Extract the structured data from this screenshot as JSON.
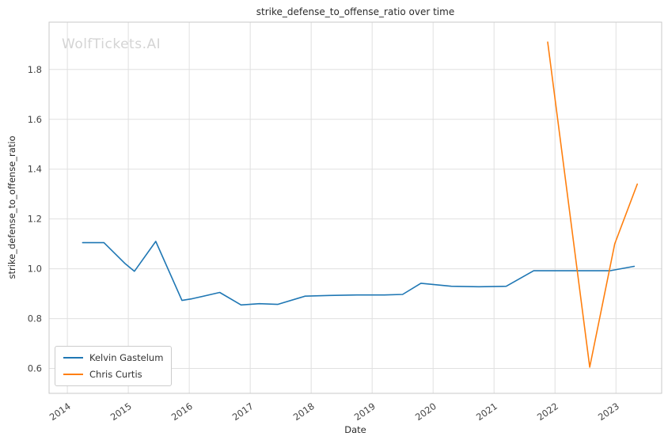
{
  "chart_data": {
    "type": "line",
    "title": "strike_defense_to_offense_ratio over time",
    "xlabel": "Date",
    "ylabel": "strike_defense_to_offense_ratio",
    "watermark": "WolfTickets.AI",
    "xlim": [
      2013.7,
      2023.75
    ],
    "ylim": [
      0.5,
      1.99
    ],
    "xticks": [
      2014,
      2015,
      2016,
      2017,
      2018,
      2019,
      2020,
      2021,
      2022,
      2023
    ],
    "yticks": [
      0.6,
      0.8,
      1.0,
      1.2,
      1.4,
      1.6,
      1.8
    ],
    "grid": true,
    "legend_position": "lower left",
    "series": [
      {
        "name": "Kelvin Gastelum",
        "color": "#1f77b4",
        "x": [
          2014.25,
          2014.6,
          2014.95,
          2015.1,
          2015.45,
          2015.88,
          2016.05,
          2016.5,
          2016.85,
          2017.15,
          2017.45,
          2017.9,
          2018.3,
          2018.75,
          2019.2,
          2019.5,
          2019.8,
          2020.3,
          2020.75,
          2021.2,
          2021.65,
          2022.2,
          2022.9,
          2023.3
        ],
        "y": [
          1.105,
          1.105,
          1.02,
          0.99,
          1.11,
          0.873,
          0.88,
          0.905,
          0.855,
          0.86,
          0.857,
          0.89,
          0.893,
          0.895,
          0.895,
          0.897,
          0.942,
          0.93,
          0.928,
          0.93,
          0.992,
          0.992,
          0.992,
          1.01
        ]
      },
      {
        "name": "Chris Curtis",
        "color": "#ff7f0e",
        "x": [
          2021.88,
          2022.57,
          2022.98,
          2023.35
        ],
        "y": [
          1.91,
          0.605,
          1.1,
          1.34
        ]
      }
    ]
  }
}
